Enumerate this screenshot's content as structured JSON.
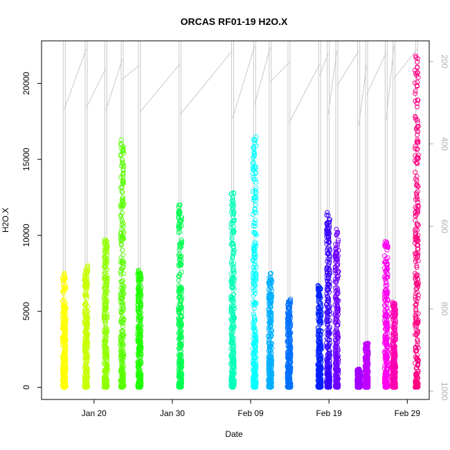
{
  "chart_data": {
    "type": "scatter",
    "title": "ORCAS RF01-19 H2O.X",
    "xlabel": "Date",
    "ylabel": "H2O.X",
    "x_tick_labels": [
      "Jan 20",
      "Jan 30",
      "Feb 09",
      "Feb 19",
      "Feb 29"
    ],
    "x_tick_days": [
      20,
      30,
      40,
      50,
      60
    ],
    "xlim_days": [
      13.3,
      62.8
    ],
    "y_ticks": [
      0,
      5000,
      10000,
      15000,
      20000
    ],
    "ylim": [
      -800,
      22800
    ],
    "right_axis": {
      "ticks": [
        200,
        400,
        600,
        800,
        1000
      ],
      "ylim": [
        1020,
        150
      ],
      "color": "#b0b0b0"
    },
    "grid": false,
    "legend": "none",
    "flights": [
      {
        "day": 16.2,
        "max": 7500,
        "color": "#ffff00"
      },
      {
        "day": 19.0,
        "max": 8000,
        "color": "#c8ff00"
      },
      {
        "day": 21.5,
        "max": 9700,
        "color": "#90ff00"
      },
      {
        "day": 23.6,
        "max": 16300,
        "color": "#58ff00"
      },
      {
        "day": 25.8,
        "max": 7700,
        "color": "#20ff00"
      },
      {
        "day": 31.0,
        "max": 12000,
        "color": "#00ff50"
      },
      {
        "day": 37.7,
        "max": 12800,
        "color": "#00ffb8"
      },
      {
        "day": 40.5,
        "max": 16500,
        "color": "#00ffff"
      },
      {
        "day": 42.5,
        "max": 7500,
        "color": "#00b0ff"
      },
      {
        "day": 44.9,
        "max": 5800,
        "color": "#0070ff"
      },
      {
        "day": 48.8,
        "max": 6700,
        "color": "#0020ff"
      },
      {
        "day": 49.9,
        "max": 11500,
        "color": "#3800ff"
      },
      {
        "day": 51.0,
        "max": 10400,
        "color": "#7000ff"
      },
      {
        "day": 53.8,
        "max": 1200,
        "color": "#a000ff"
      },
      {
        "day": 54.8,
        "max": 2900,
        "color": "#c000ff"
      },
      {
        "day": 57.3,
        "max": 9600,
        "color": "#ff00f0"
      },
      {
        "day": 58.3,
        "max": 5600,
        "color": "#ff00b0"
      },
      {
        "day": 61.2,
        "max": 21800,
        "color": "#ff0080"
      }
    ]
  }
}
